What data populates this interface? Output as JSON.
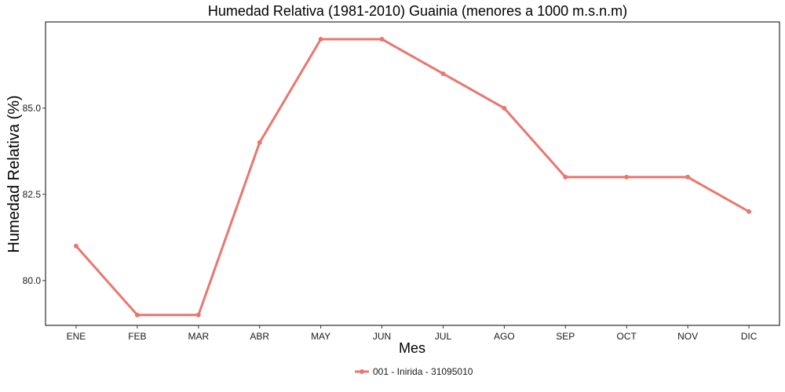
{
  "chart_data": {
    "type": "line",
    "title": "Humedad Relativa (1981-2010) Guainia (menores a 1000 m.s.n.m)",
    "xlabel": "Mes",
    "ylabel": "Humedad Relativa (%)",
    "categories": [
      "ENE",
      "FEB",
      "MAR",
      "ABR",
      "MAY",
      "JUN",
      "JUL",
      "AGO",
      "SEP",
      "OCT",
      "NOV",
      "DIC"
    ],
    "yticks": [
      80.0,
      82.5,
      85.0
    ],
    "ytick_labels": [
      "80.0",
      "82.5",
      "85.0"
    ],
    "ylim": [
      78.7,
      87.5
    ],
    "grid": false,
    "legend_position": "bottom",
    "series": [
      {
        "name": "001 - Inirida - 31095010",
        "color": "#e8776f",
        "values": [
          81,
          79,
          79,
          84,
          87,
          87,
          86,
          85,
          83,
          83,
          83,
          82
        ]
      }
    ]
  }
}
